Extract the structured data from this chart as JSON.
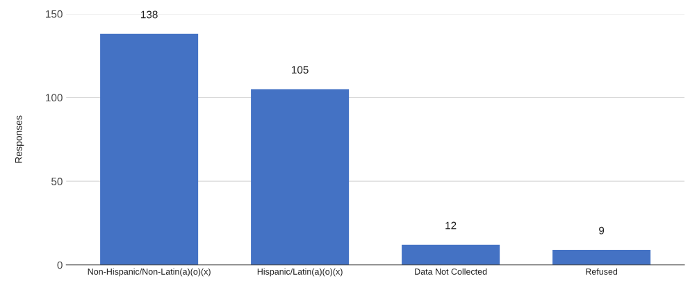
{
  "chart_data": {
    "type": "bar",
    "ylabel": "Responses",
    "categories": [
      "Non-Hispanic/Non-Latin(a)(o)(x)",
      "Hispanic/Latin(a)(o)(x)",
      "Data Not Collected",
      "Refused"
    ],
    "values": [
      138,
      105,
      12,
      9
    ],
    "color": "#4472c4",
    "ylim": [
      0,
      150
    ],
    "yticks": [
      0,
      50,
      100,
      150
    ],
    "grid": "y",
    "data_labels": true
  }
}
